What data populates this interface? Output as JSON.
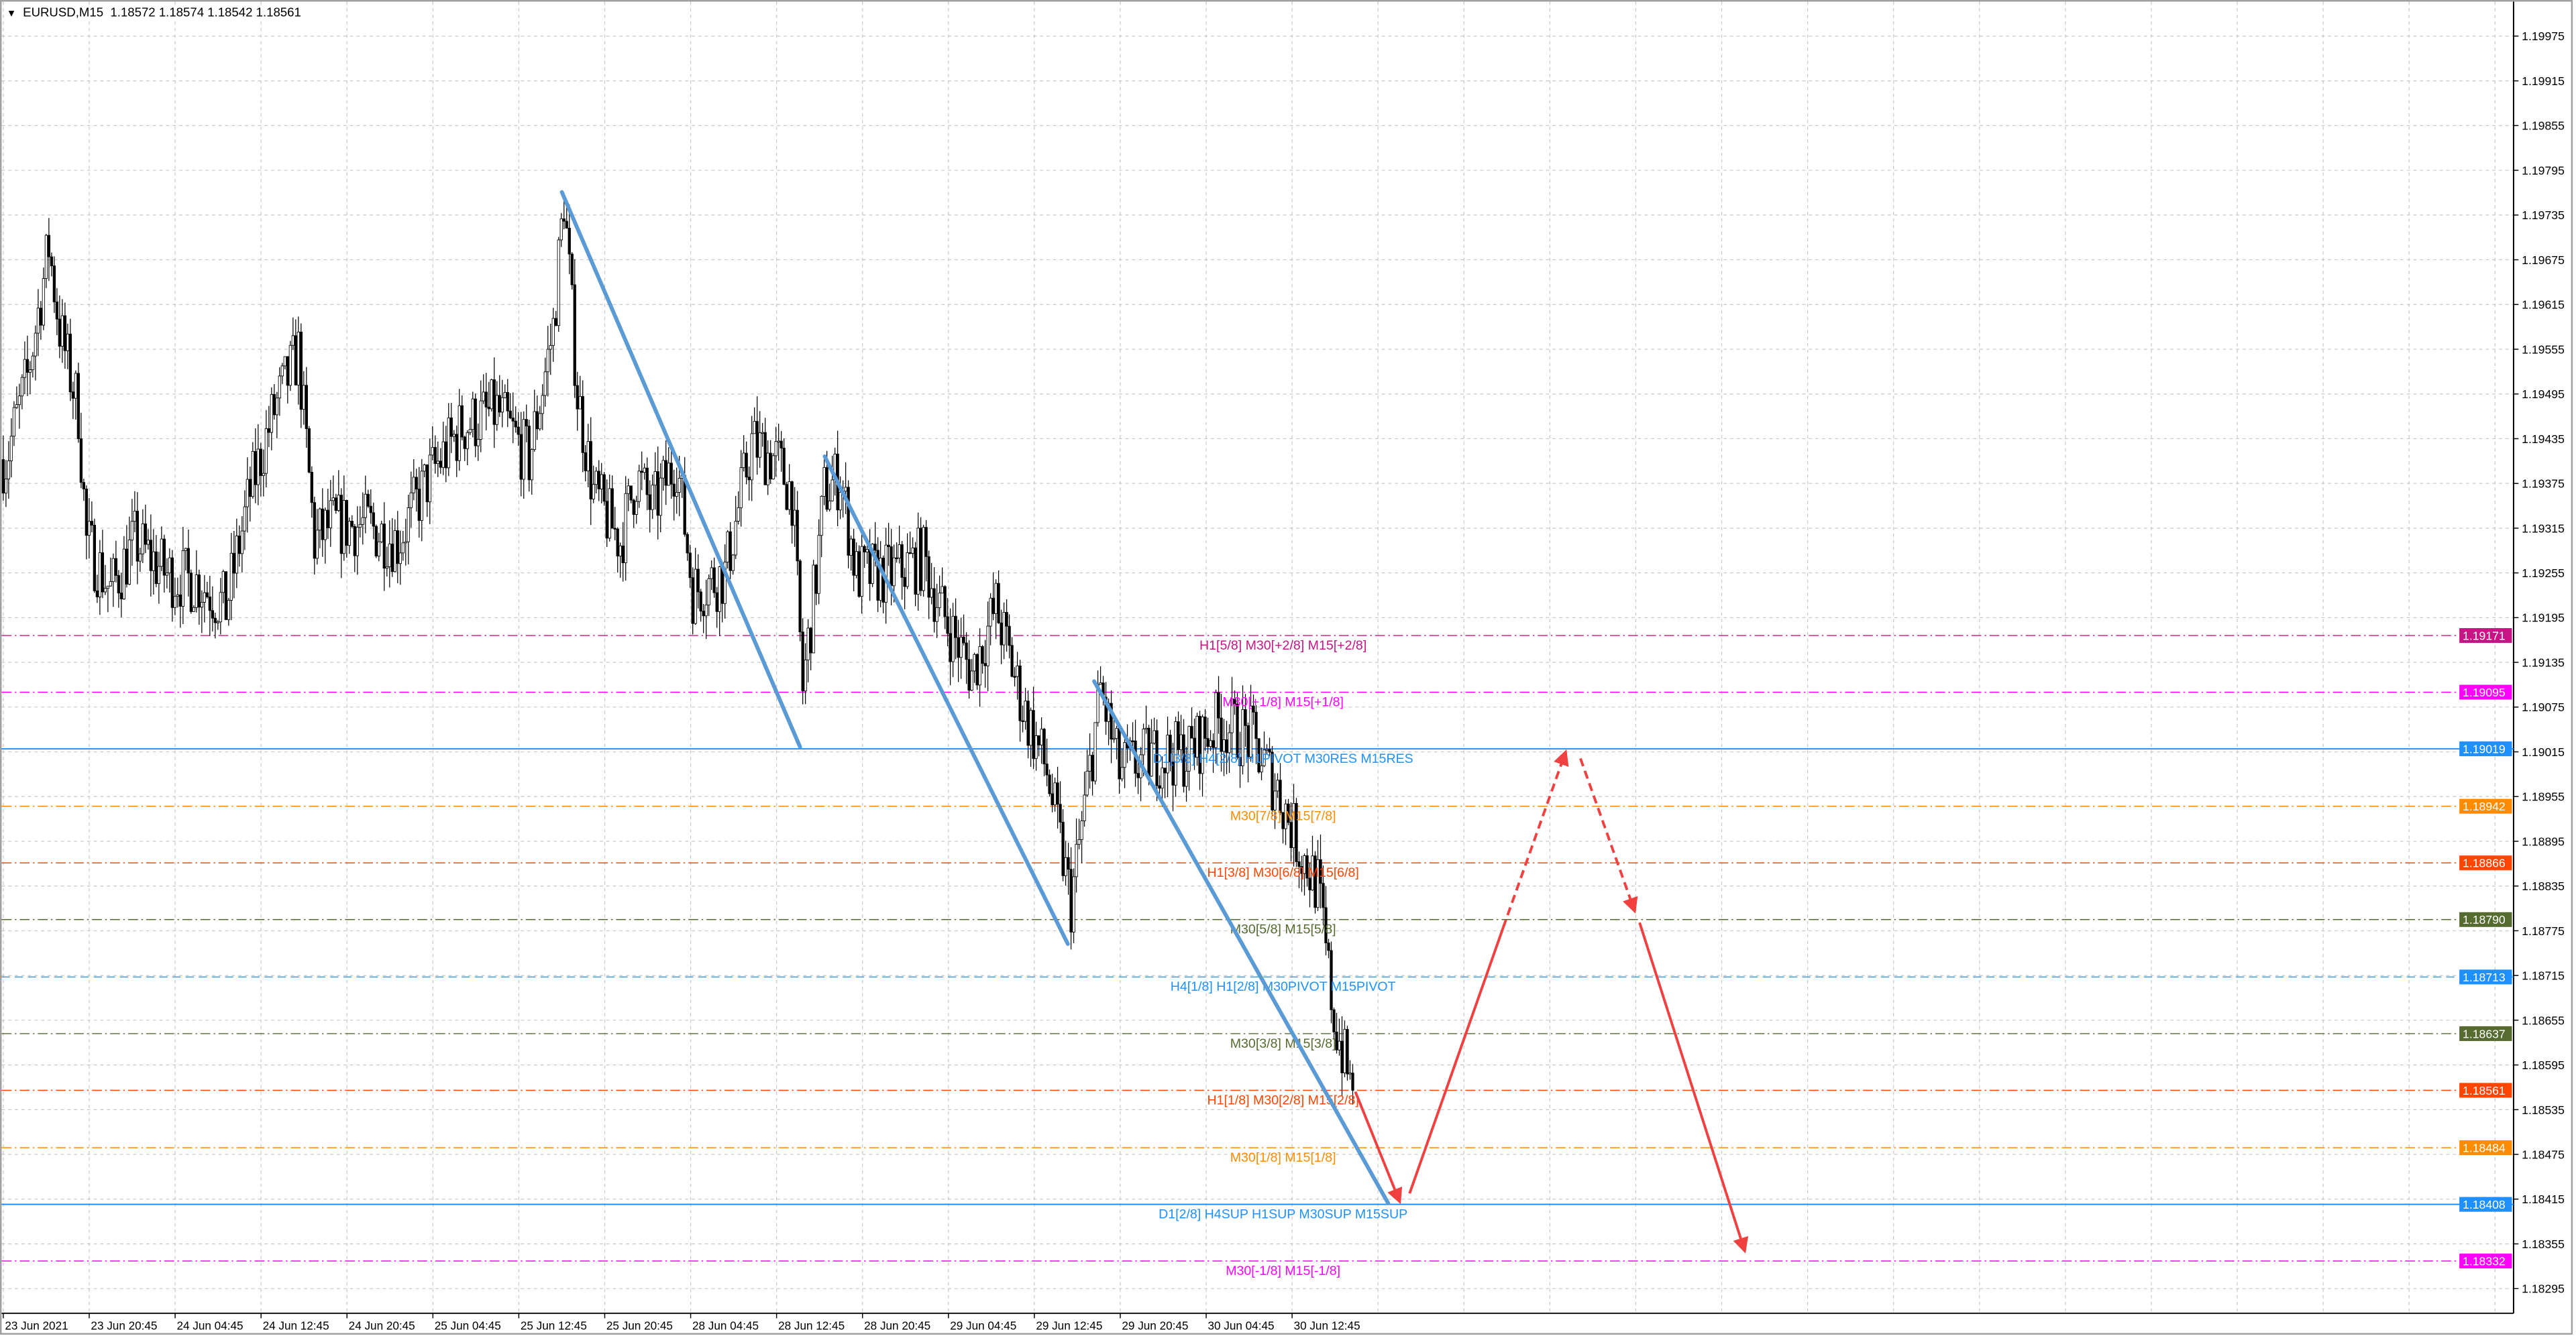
{
  "window": {
    "symbol": "EURUSD,M15",
    "ohlc": "1.18572 1.18574 1.18542 1.18561",
    "menu_icon": "triangle-down-icon"
  },
  "chart_data": {
    "type": "candlestick",
    "symbol": "EURUSD",
    "timeframe": "M15",
    "ylim": [
      1.18265,
      1.2
    ],
    "grid": true,
    "price_ticks": [
      "1.19975",
      "1.19915",
      "1.19855",
      "1.19795",
      "1.19735",
      "1.19675",
      "1.19615",
      "1.19555",
      "1.19495",
      "1.19435",
      "1.19375",
      "1.19315",
      "1.19255",
      "1.19195",
      "1.19135",
      "1.19075",
      "1.19015",
      "1.18955",
      "1.18895",
      "1.18835",
      "1.18775",
      "1.18715",
      "1.18655",
      "1.18595",
      "1.18535",
      "1.18475",
      "1.18415",
      "1.18355",
      "1.18295"
    ],
    "time_ticks": [
      "23 Jun 2021",
      "23 Jun 20:45",
      "24 Jun 04:45",
      "24 Jun 12:45",
      "24 Jun 20:45",
      "25 Jun 04:45",
      "25 Jun 12:45",
      "25 Jun 20:45",
      "28 Jun 04:45",
      "28 Jun 12:45",
      "28 Jun 20:45",
      "29 Jun 04:45",
      "29 Jun 12:45",
      "29 Jun 20:45",
      "30 Jun 04:45",
      "30 Jun 12:45"
    ],
    "price_path_bar_close": [
      [
        1,
        1.19407
      ],
      [
        9,
        1.19517
      ],
      [
        17,
        1.19693
      ],
      [
        21,
        1.19583
      ],
      [
        28,
        1.19473
      ],
      [
        31,
        1.19297
      ],
      [
        40,
        1.19231
      ],
      [
        49,
        1.19297
      ],
      [
        61,
        1.19253
      ],
      [
        73,
        1.19242
      ],
      [
        83,
        1.19209
      ],
      [
        92,
        1.19363
      ],
      [
        101,
        1.19473
      ],
      [
        110,
        1.1955
      ],
      [
        116,
        1.19297
      ],
      [
        122,
        1.19319
      ],
      [
        135,
        1.19319
      ],
      [
        147,
        1.19297
      ],
      [
        159,
        1.19385
      ],
      [
        171,
        1.19451
      ],
      [
        184,
        1.19473
      ],
      [
        196,
        1.19407
      ],
      [
        205,
        1.19583
      ],
      [
        209,
        1.19759
      ],
      [
        214,
        1.19495
      ],
      [
        220,
        1.19363
      ],
      [
        230,
        1.19297
      ],
      [
        236,
        1.19385
      ],
      [
        242,
        1.19341
      ],
      [
        251,
        1.19407
      ],
      [
        257,
        1.19231
      ],
      [
        269,
        1.19253
      ],
      [
        279,
        1.19429
      ],
      [
        288,
        1.19407
      ],
      [
        294,
        1.19363
      ],
      [
        298,
        1.19099
      ],
      [
        303,
        1.19253
      ],
      [
        306,
        1.19363
      ],
      [
        312,
        1.19385
      ],
      [
        318,
        1.19253
      ],
      [
        331,
        1.19253
      ],
      [
        343,
        1.19275
      ],
      [
        349,
        1.19209
      ],
      [
        361,
        1.19121
      ],
      [
        370,
        1.19209
      ],
      [
        380,
        1.19077
      ],
      [
        389,
        1.18989
      ],
      [
        398,
        1.18812
      ],
      [
        404,
        1.18966
      ],
      [
        409,
        1.19099
      ],
      [
        416,
        1.18989
      ],
      [
        429,
        1.19011
      ],
      [
        441,
        1.19011
      ],
      [
        453,
        1.19055
      ],
      [
        465,
        1.19033
      ],
      [
        475,
        1.18966
      ],
      [
        484,
        1.18878
      ],
      [
        490,
        1.18834
      ],
      [
        496,
        1.18658
      ],
      [
        502,
        1.1857
      ],
      [
        503,
        1.18561
      ]
    ],
    "levels": [
      {
        "price": "1.19171",
        "label": "H1[5/8] M30[+2/8] M15[+2/8]",
        "color": "#C71585",
        "style": "dashdot"
      },
      {
        "price": "1.19095",
        "label": "M30[+1/8] M15[+1/8]",
        "color": "#FF00FF",
        "style": "dashdot"
      },
      {
        "price": "1.19019",
        "label": "D1[3/8] H4[2/8] H1PIVOT M30RES M15RES",
        "color": "#1E90FF",
        "style": "solid"
      },
      {
        "price": "1.18942",
        "label": "M30[7/8] M15[7/8]",
        "color": "#FF8C00",
        "style": "dashdot"
      },
      {
        "price": "1.18866",
        "label": "H1[3/8] M30[6/8] M15[6/8]",
        "color": "#FF4500",
        "style": "dashdot"
      },
      {
        "price": "1.18790",
        "label": "M30[5/8] M15[5/8]",
        "color": "#556B2F",
        "style": "dashdot"
      },
      {
        "price": "1.18713",
        "label": "H4[1/8] H1[2/8] M30PIVOT M15PIVOT",
        "color": "#1E90FF",
        "style": "dashed"
      },
      {
        "price": "1.18637",
        "label": "M30[3/8] M15[3/8]",
        "color": "#556B2F",
        "style": "dashdot"
      },
      {
        "price": "1.18561",
        "label": "H1[1/8] M30[2/8] M15[2/8]",
        "color": "#FF4500",
        "style": "dashdot"
      },
      {
        "price": "1.18484",
        "label": "M30[1/8] M15[1/8]",
        "color": "#FF8C00",
        "style": "dashdot"
      },
      {
        "price": "1.18408",
        "label": "D1[2/8] H4SUP H1SUP M30SUP M15SUP",
        "color": "#1E90FF",
        "style": "solid"
      },
      {
        "price": "1.18332",
        "label": "M30[-1/8] M15[-1/8]",
        "color": "#FF00FF",
        "style": "dashdot"
      }
    ],
    "colors": {
      "trendline": "#5B9BD5",
      "arrow": "#F04040",
      "grid": "#c8c8c8",
      "bull": "#ffffff",
      "bear": "#000000"
    }
  }
}
